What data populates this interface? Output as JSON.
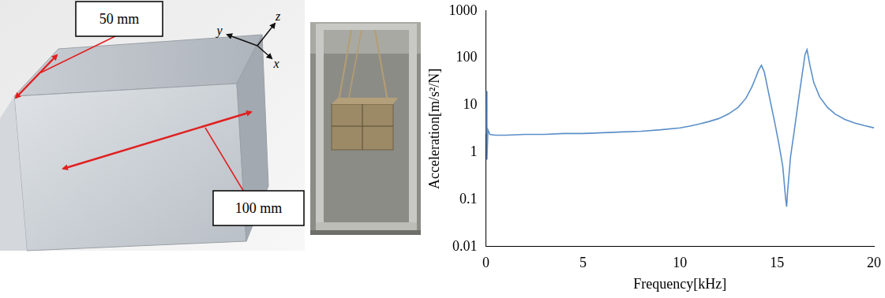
{
  "photos": {
    "specimen": {
      "dimensions": [
        "50 mm",
        "100 mm"
      ],
      "axes": [
        "y",
        "z",
        "x"
      ]
    }
  },
  "chart_data": {
    "type": "line",
    "x_label": "Frequency[kHz]",
    "y_label": "Acceleration[m/s²/N]",
    "x": [
      0.0,
      0.02,
      0.05,
      0.1,
      0.2,
      0.5,
      1,
      2,
      3,
      4,
      5,
      6,
      7,
      8,
      9,
      10,
      10.5,
      11,
      11.5,
      12,
      12.5,
      13,
      13.4,
      13.7,
      13.9,
      14.05,
      14.2,
      14.35,
      14.5,
      14.7,
      14.9,
      15.1,
      15.3,
      15.45,
      15.5,
      15.55,
      15.7,
      15.9,
      16.1,
      16.3,
      16.45,
      16.55,
      16.7,
      16.9,
      17.2,
      17.6,
      18,
      18.5,
      19,
      19.5,
      20
    ],
    "values": [
      2.5,
      20,
      0.7,
      3,
      2.4,
      2.3,
      2.3,
      2.4,
      2.4,
      2.5,
      2.5,
      2.6,
      2.7,
      2.8,
      3.0,
      3.3,
      3.6,
      4,
      4.5,
      5.2,
      6.5,
      9,
      14,
      24,
      38,
      55,
      70,
      50,
      25,
      10,
      4,
      1.5,
      0.5,
      0.1,
      0.07,
      0.15,
      0.8,
      3,
      12,
      45,
      120,
      150,
      70,
      30,
      15,
      9,
      6.5,
      5,
      4.2,
      3.7,
      3.3
    ],
    "color": "#5b8fc9",
    "xlim": [
      0,
      20
    ],
    "xticks": [
      0,
      5,
      10,
      15,
      20
    ],
    "ylim": [
      0.01,
      1000
    ],
    "yticks": [
      0.01,
      0.1,
      1,
      10,
      100,
      1000
    ],
    "log": "y",
    "grid": false
  }
}
